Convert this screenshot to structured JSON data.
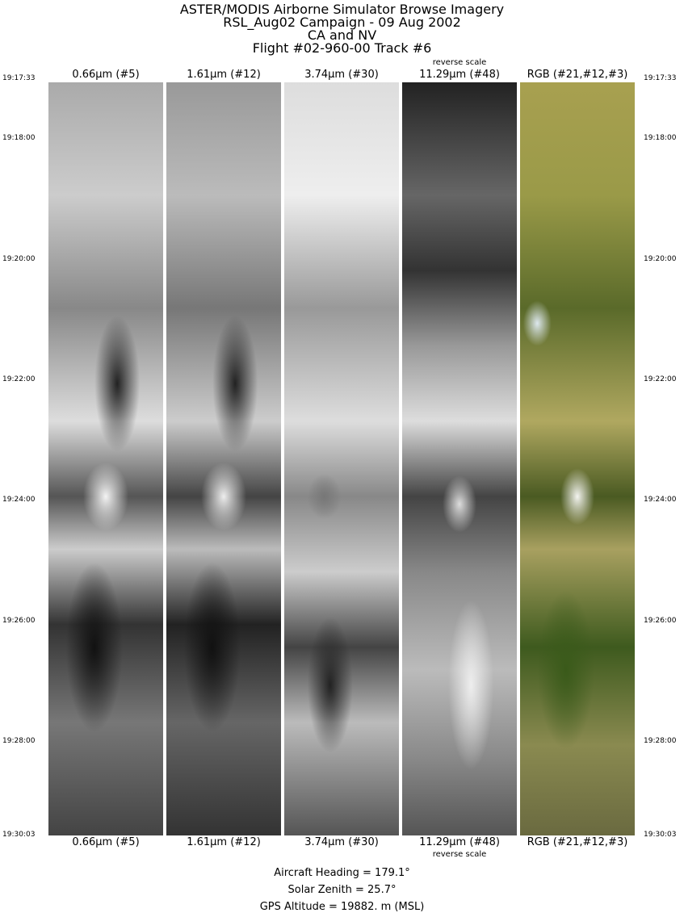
{
  "header": {
    "line1": "ASTER/MODIS Airborne Simulator Browse Imagery",
    "line2": "RSL_Aug02 Campaign - 09 Aug 2002",
    "line3": "CA and NV",
    "line4": "Flight #02-960-00 Track #6"
  },
  "panels": [
    {
      "label": "0.66μm (#5)",
      "note": ""
    },
    {
      "label": "1.61μm (#12)",
      "note": ""
    },
    {
      "label": "3.74μm (#30)",
      "note": ""
    },
    {
      "label": "11.29μm (#48)",
      "note": "reverse scale"
    },
    {
      "label": "RGB (#21,#12,#3)",
      "note": ""
    }
  ],
  "times": [
    "19:17:33",
    "19:18:00",
    "19:20:00",
    "19:22:00",
    "19:24:00",
    "19:26:00",
    "19:28:00",
    "19:30:03"
  ],
  "footer": {
    "heading": "Aircraft Heading =  179.1°",
    "zenith": "Solar Zenith =   25.7°",
    "altitude": "GPS Altitude =  19882. m (MSL)"
  }
}
